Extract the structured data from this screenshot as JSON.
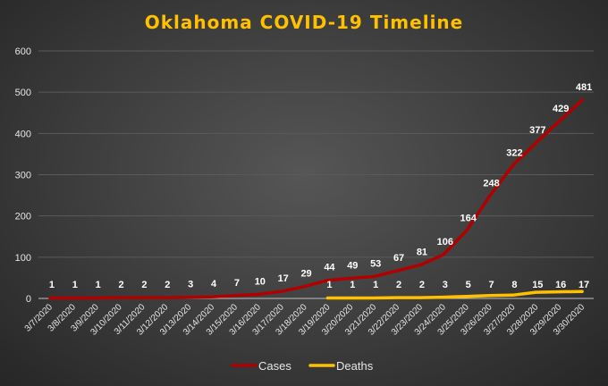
{
  "chart_data": {
    "type": "line",
    "title": "Oklahoma  COVID-19  Timeline",
    "categories": [
      "3/7/2020",
      "3/8/2020",
      "3/9/2020",
      "3/10/2020",
      "3/11/2020",
      "3/12/2020",
      "3/13/2020",
      "3/14/2020",
      "3/15/2020",
      "3/16/2020",
      "3/17/2020",
      "3/18/2020",
      "3/19/2020",
      "3/20/2020",
      "3/21/2020",
      "3/22/2020",
      "3/23/2020",
      "3/24/2020",
      "3/25/2020",
      "3/26/2020",
      "3/27/2020",
      "3/28/2020",
      "3/29/2020",
      "3/30/2020"
    ],
    "series": [
      {
        "name": "Cases",
        "color": "#b00000",
        "values": [
          1,
          1,
          1,
          2,
          2,
          2,
          3,
          4,
          7,
          10,
          17,
          29,
          44,
          49,
          53,
          67,
          81,
          106,
          164,
          248,
          322,
          377,
          429,
          481
        ]
      },
      {
        "name": "Deaths",
        "color": "#ffc000",
        "values": [
          null,
          null,
          null,
          null,
          null,
          null,
          null,
          null,
          null,
          null,
          null,
          null,
          1,
          1,
          1,
          2,
          2,
          3,
          5,
          7,
          8,
          15,
          16,
          17
        ]
      }
    ],
    "yticks": [
      "0",
      "100",
      "200",
      "300",
      "400",
      "500",
      "600"
    ],
    "ylim": [
      0,
      600
    ],
    "grid": true,
    "legend": "bottom",
    "colors": {
      "title": "#ffc000",
      "background": "#404040",
      "grid": "#5a5a5a",
      "axis": "#bfbfbf"
    }
  }
}
